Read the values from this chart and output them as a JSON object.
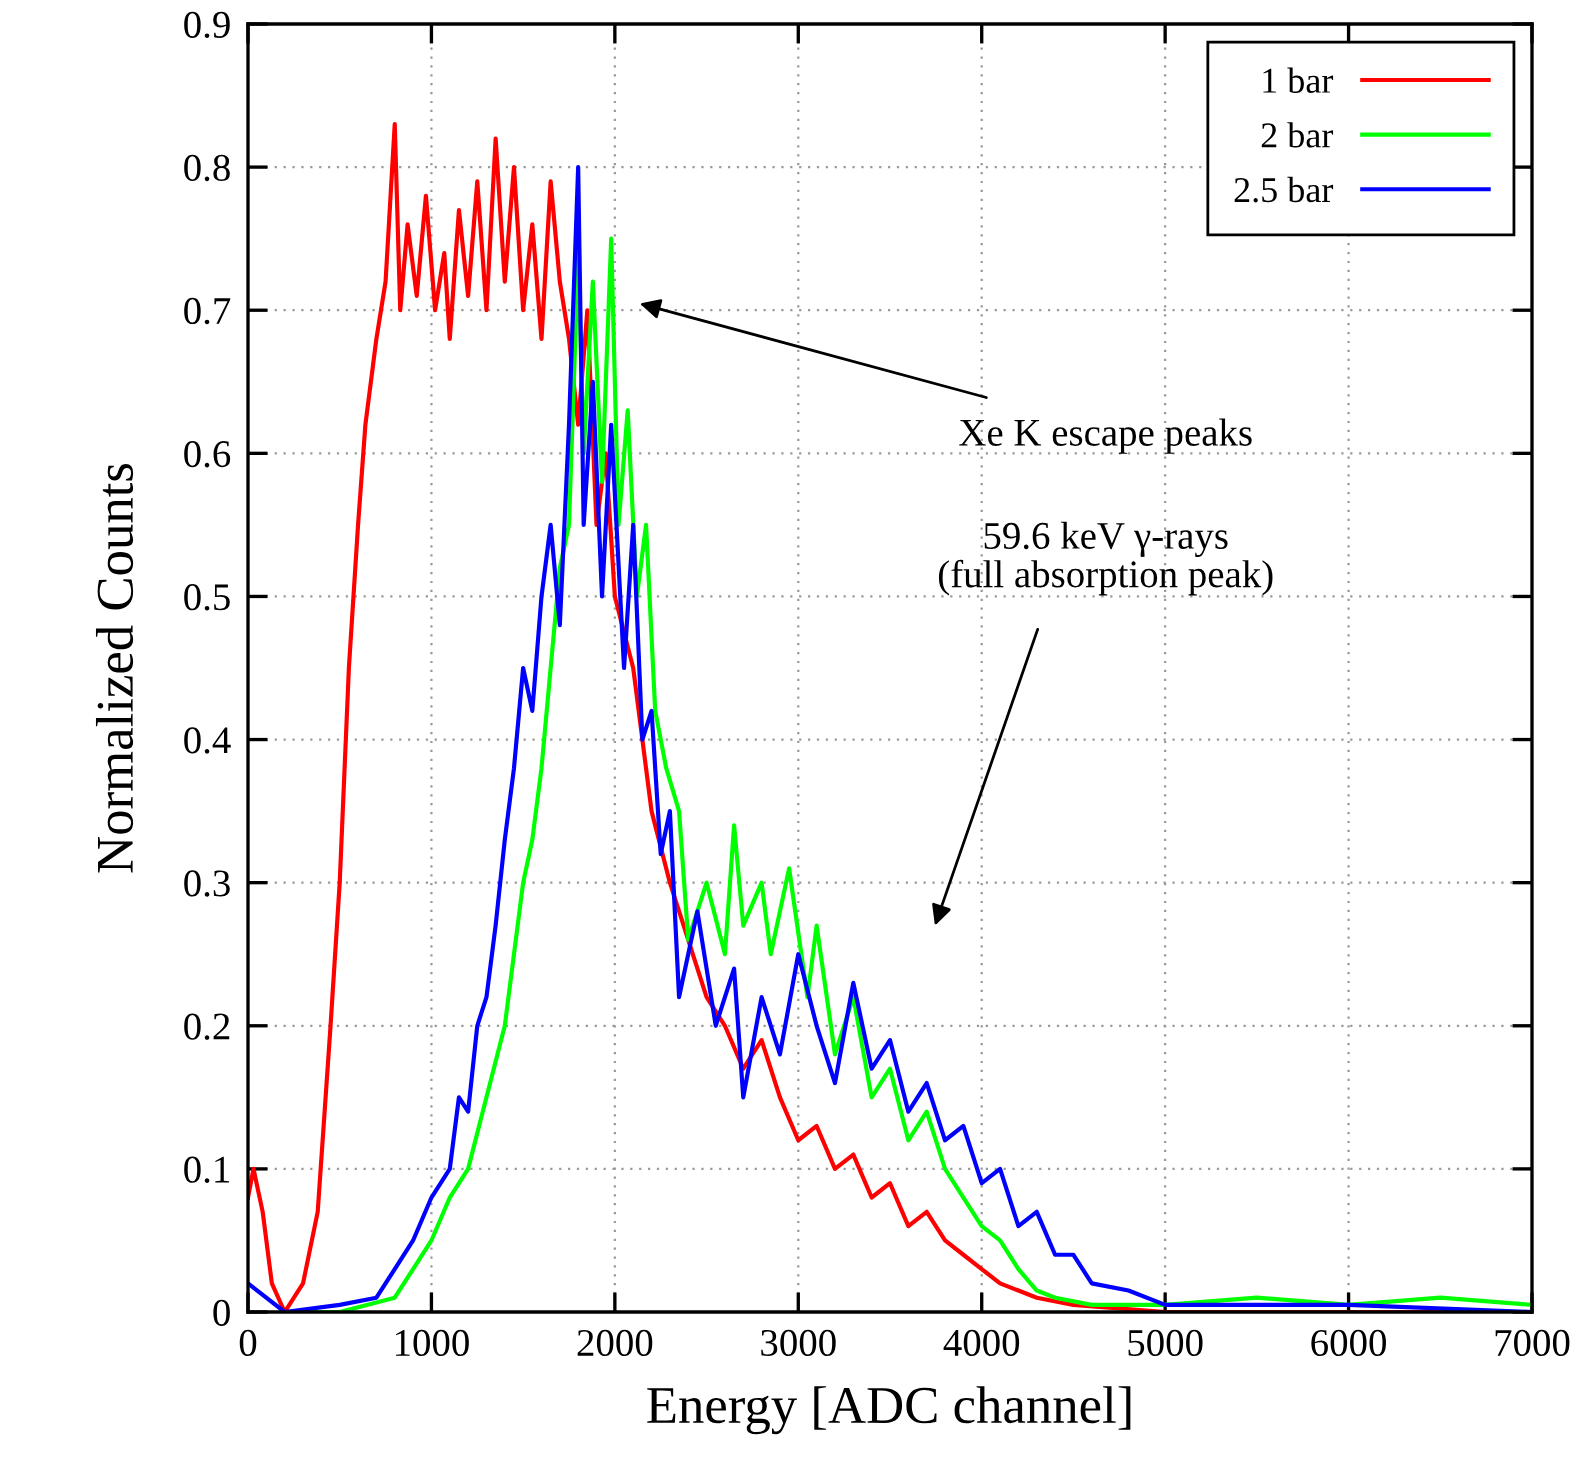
{
  "chart_data": {
    "type": "line",
    "xlabel": "Energy [ADC channel]",
    "ylabel": "Normalized Counts",
    "xlim": [
      0,
      7000
    ],
    "ylim": [
      0,
      0.9
    ],
    "xticks": [
      0,
      1000,
      2000,
      3000,
      4000,
      5000,
      6000,
      7000
    ],
    "yticks": [
      0,
      0.1,
      0.2,
      0.3,
      0.4,
      0.5,
      0.6,
      0.7,
      0.8,
      0.9
    ],
    "grid": true,
    "legend": "top right",
    "marker": "none",
    "line_style": "solid",
    "annotations": [
      "Xe K escape peaks",
      "59.6 keV γ-rays\n(full absorption peak)"
    ],
    "series": [
      {
        "name": "1 bar",
        "color": "#ff0000",
        "x": [
          0,
          30,
          80,
          130,
          200,
          300,
          380,
          450,
          500,
          550,
          600,
          640,
          700,
          750,
          800,
          830,
          870,
          920,
          970,
          1020,
          1070,
          1100,
          1150,
          1200,
          1250,
          1300,
          1350,
          1400,
          1450,
          1500,
          1550,
          1600,
          1650,
          1700,
          1750,
          1800,
          1850,
          1900,
          1950,
          2000,
          2100,
          2200,
          2300,
          2400,
          2500,
          2600,
          2700,
          2800,
          2900,
          3000,
          3100,
          3200,
          3300,
          3400,
          3500,
          3600,
          3700,
          3800,
          3900,
          4000,
          4100,
          4200,
          4300,
          4500,
          5000,
          6000,
          7000
        ],
        "values": [
          0.08,
          0.1,
          0.07,
          0.02,
          0.0,
          0.02,
          0.07,
          0.2,
          0.3,
          0.45,
          0.55,
          0.62,
          0.68,
          0.72,
          0.83,
          0.7,
          0.76,
          0.71,
          0.78,
          0.7,
          0.74,
          0.68,
          0.77,
          0.71,
          0.79,
          0.7,
          0.82,
          0.72,
          0.8,
          0.7,
          0.76,
          0.68,
          0.79,
          0.72,
          0.68,
          0.62,
          0.7,
          0.55,
          0.6,
          0.5,
          0.45,
          0.35,
          0.3,
          0.26,
          0.22,
          0.2,
          0.17,
          0.19,
          0.15,
          0.12,
          0.13,
          0.1,
          0.11,
          0.08,
          0.09,
          0.06,
          0.07,
          0.05,
          0.04,
          0.03,
          0.02,
          0.015,
          0.01,
          0.005,
          0,
          0,
          0
        ]
      },
      {
        "name": "2 bar",
        "color": "#00ff00",
        "x": [
          200,
          500,
          800,
          900,
          1000,
          1100,
          1200,
          1300,
          1400,
          1450,
          1500,
          1550,
          1600,
          1650,
          1700,
          1750,
          1800,
          1830,
          1880,
          1930,
          1980,
          2020,
          2070,
          2120,
          2170,
          2220,
          2280,
          2350,
          2400,
          2500,
          2600,
          2650,
          2700,
          2800,
          2850,
          2950,
          3050,
          3100,
          3200,
          3300,
          3400,
          3500,
          3600,
          3700,
          3800,
          3900,
          4000,
          4100,
          4200,
          4300,
          4400,
          4600,
          5000,
          5500,
          6000,
          6500,
          7000
        ],
        "values": [
          0,
          0,
          0.01,
          0.03,
          0.05,
          0.08,
          0.1,
          0.15,
          0.2,
          0.25,
          0.3,
          0.33,
          0.38,
          0.45,
          0.52,
          0.55,
          0.74,
          0.6,
          0.72,
          0.58,
          0.75,
          0.55,
          0.63,
          0.5,
          0.55,
          0.42,
          0.38,
          0.35,
          0.26,
          0.3,
          0.25,
          0.34,
          0.27,
          0.3,
          0.25,
          0.31,
          0.22,
          0.27,
          0.18,
          0.22,
          0.15,
          0.17,
          0.12,
          0.14,
          0.1,
          0.08,
          0.06,
          0.05,
          0.03,
          0.015,
          0.01,
          0.005,
          0.005,
          0.01,
          0.005,
          0.01,
          0.005
        ]
      },
      {
        "name": "2.5 bar",
        "color": "#0000ff",
        "x": [
          0,
          200,
          500,
          700,
          800,
          900,
          1000,
          1100,
          1150,
          1200,
          1250,
          1300,
          1350,
          1400,
          1450,
          1500,
          1550,
          1600,
          1650,
          1700,
          1750,
          1800,
          1830,
          1880,
          1930,
          1980,
          2050,
          2100,
          2150,
          2200,
          2250,
          2300,
          2350,
          2450,
          2550,
          2650,
          2700,
          2800,
          2900,
          3000,
          3100,
          3200,
          3300,
          3400,
          3500,
          3600,
          3700,
          3800,
          3900,
          4000,
          4100,
          4200,
          4300,
          4400,
          4500,
          4600,
          4800,
          5000,
          5500,
          6000,
          7000
        ],
        "values": [
          0.02,
          0,
          0.005,
          0.01,
          0.03,
          0.05,
          0.08,
          0.1,
          0.15,
          0.14,
          0.2,
          0.22,
          0.27,
          0.33,
          0.38,
          0.45,
          0.42,
          0.5,
          0.55,
          0.48,
          0.62,
          0.8,
          0.55,
          0.65,
          0.5,
          0.62,
          0.45,
          0.55,
          0.4,
          0.42,
          0.32,
          0.35,
          0.22,
          0.28,
          0.2,
          0.24,
          0.15,
          0.22,
          0.18,
          0.25,
          0.2,
          0.16,
          0.23,
          0.17,
          0.19,
          0.14,
          0.16,
          0.12,
          0.13,
          0.09,
          0.1,
          0.06,
          0.07,
          0.04,
          0.04,
          0.02,
          0.015,
          0.005,
          0.005,
          0.005,
          0
        ]
      }
    ]
  }
}
